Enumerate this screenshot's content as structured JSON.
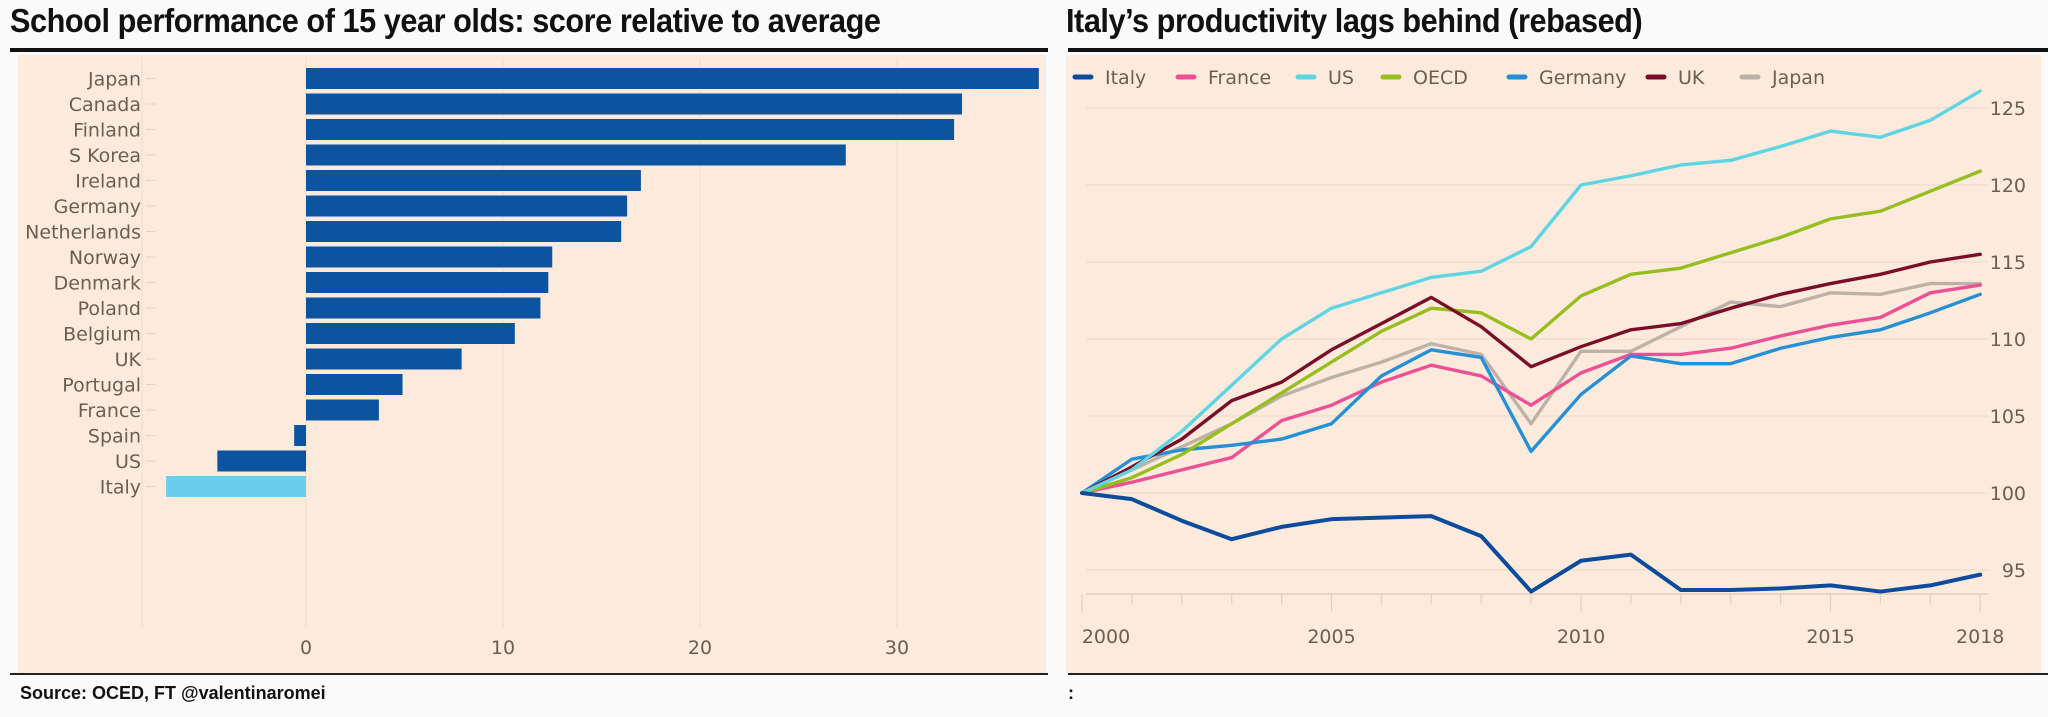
{
  "left_panel": {
    "title": "School performance of 15 year olds: score relative to average",
    "source": "Source: OCED, FT @valentinaromei"
  },
  "right_panel": {
    "title": "Italy’s productivity lags behind (rebased)",
    "source": ":"
  },
  "chart_data": [
    {
      "type": "bar",
      "orientation": "horizontal",
      "title": "School performance of 15 year olds: score relative to average",
      "xlabel": "",
      "ylabel": "",
      "categories": [
        "Japan",
        "Canada",
        "Finland",
        "S Korea",
        "Ireland",
        "Germany",
        "Netherlands",
        "Norway",
        "Denmark",
        "Poland",
        "Belgium",
        "UK",
        "Portugal",
        "France",
        "Spain",
        "US",
        "Italy"
      ],
      "values": [
        37.2,
        33.3,
        32.9,
        27.4,
        17.0,
        16.3,
        16.0,
        12.5,
        12.3,
        11.9,
        10.6,
        7.9,
        4.9,
        3.7,
        -0.6,
        -4.5,
        -7.1
      ],
      "highlight": "Italy",
      "colors": {
        "default": "#0d54a0",
        "highlight": "#6acdec",
        "background": "#fcebdc"
      },
      "xlim": [
        -8,
        38
      ],
      "xticks": [
        0,
        10,
        20,
        30
      ],
      "grid": true
    },
    {
      "type": "line",
      "title": "Italy’s productivity lags behind (rebased)",
      "xlabel": "",
      "ylabel": "",
      "x": [
        2000,
        2001,
        2002,
        2003,
        2004,
        2005,
        2006,
        2007,
        2008,
        2009,
        2010,
        2011,
        2012,
        2013,
        2014,
        2015,
        2016,
        2017,
        2018
      ],
      "xticks": [
        2000,
        2005,
        2010,
        2015,
        2018
      ],
      "yticks": [
        95,
        100,
        105,
        110,
        115,
        120,
        125
      ],
      "ylim": [
        93.5,
        127
      ],
      "yaxis_side": "right",
      "legend_position": "top",
      "grid": true,
      "series": [
        {
          "name": "Italy",
          "color": "#0d4b9c",
          "values": [
            100,
            99.6,
            98.2,
            97.0,
            97.8,
            98.3,
            98.4,
            98.5,
            97.2,
            93.6,
            95.6,
            96.0,
            93.7,
            93.7,
            93.8,
            94.0,
            93.6,
            94.0,
            94.7
          ]
        },
        {
          "name": "France",
          "color": "#ec5195",
          "values": [
            100,
            100.7,
            101.5,
            102.3,
            104.7,
            105.7,
            107.2,
            108.3,
            107.6,
            105.7,
            107.8,
            109.0,
            109.0,
            109.4,
            110.2,
            110.9,
            111.4,
            113.0,
            113.5
          ]
        },
        {
          "name": "US",
          "color": "#5fd4e3",
          "values": [
            100,
            101.5,
            104.0,
            107.0,
            110.0,
            112.0,
            113.0,
            114.0,
            114.4,
            116.0,
            120.0,
            120.6,
            121.3,
            121.6,
            122.5,
            123.5,
            123.1,
            124.2,
            126.1
          ]
        },
        {
          "name": "OECD",
          "color": "#96be1f",
          "values": [
            100,
            101.0,
            102.5,
            104.5,
            106.5,
            108.5,
            110.5,
            112.0,
            111.7,
            110.0,
            112.8,
            114.2,
            114.6,
            115.6,
            116.6,
            117.8,
            118.3,
            119.6,
            120.9
          ]
        },
        {
          "name": "Germany",
          "color": "#2590d3",
          "values": [
            100,
            102.2,
            102.8,
            103.1,
            103.5,
            104.5,
            107.6,
            109.3,
            108.8,
            102.7,
            106.4,
            108.9,
            108.4,
            108.4,
            109.4,
            110.1,
            110.6,
            111.7,
            112.9
          ]
        },
        {
          "name": "UK",
          "color": "#7a0e2a",
          "values": [
            100,
            101.7,
            103.5,
            106.0,
            107.2,
            109.3,
            111.0,
            112.7,
            110.8,
            108.2,
            109.5,
            110.6,
            111.0,
            112.0,
            112.9,
            113.6,
            114.2,
            115.0,
            115.5
          ]
        },
        {
          "name": "Japan",
          "color": "#bdb2a8",
          "values": [
            100,
            101.5,
            103.0,
            104.5,
            106.3,
            107.5,
            108.5,
            109.7,
            109.0,
            104.5,
            109.2,
            109.2,
            110.8,
            112.4,
            112.1,
            113.0,
            112.9,
            113.6,
            113.6
          ]
        }
      ]
    }
  ]
}
